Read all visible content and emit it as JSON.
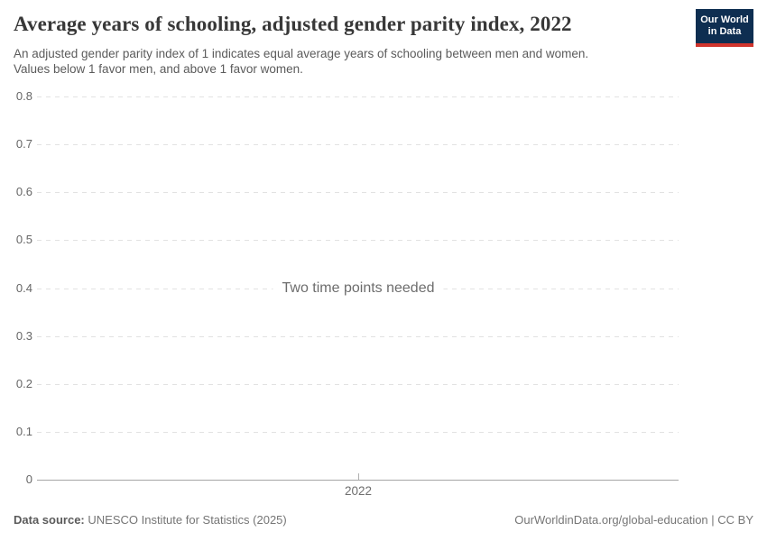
{
  "header": {
    "title": "Average years of schooling, adjusted gender parity index, 2022",
    "subtitle_lines": [
      "An adjusted gender parity index of 1 indicates equal average years of schooling between men and women.",
      "Values below 1 favor men, and above 1 favor women."
    ],
    "logo": {
      "line1": "Our World",
      "line2": "in Data",
      "bg_color": "#0e2e51",
      "stripe_color": "#d0342c",
      "text_color": "#ffffff"
    }
  },
  "chart_data": {
    "type": "line",
    "title": "Average years of schooling, adjusted gender parity index, 2022",
    "series": [],
    "message": "Two time points needed",
    "yticks": [
      0,
      0.1,
      0.2,
      0.3,
      0.4,
      0.5,
      0.6,
      0.7,
      0.8
    ],
    "ylim": [
      0,
      0.8
    ],
    "xticks": [
      "2022"
    ],
    "xlabel": "",
    "ylabel": "",
    "grid": "dashed-horizontal",
    "legend": "none",
    "gridline_color": "#e2e2e2",
    "axis_color": "#a5a5a5"
  },
  "footer": {
    "datasource_label": "Data source:",
    "datasource_value": "UNESCO Institute for Statistics (2025)",
    "attribution": "OurWorldinData.org/global-education | CC BY"
  }
}
